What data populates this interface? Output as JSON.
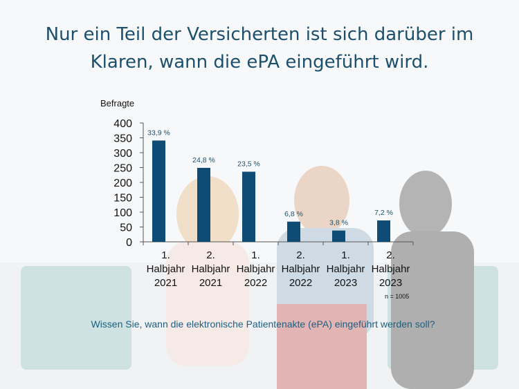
{
  "title": "Nur ein Teil  der Versicherten ist sich darüber im Klaren, wann die ePA eingeführt wird.",
  "colors": {
    "bar": "#0f4c75",
    "title": "#1c4f6b",
    "question": "#1c5f80"
  },
  "note": "n = 1005",
  "question": "Wissen Sie, wann die elektronische Patientenakte (ePA) eingeführt werden soll?",
  "chart_data": {
    "type": "bar",
    "ylabel": "Befragte",
    "xlabel": "",
    "ylim": [
      0,
      400
    ],
    "yticks": [
      0,
      50,
      100,
      150,
      200,
      250,
      300,
      350,
      400
    ],
    "grid": false,
    "categories": [
      [
        "1.",
        "Halbjahr",
        "2021"
      ],
      [
        "2.",
        "Halbjahr",
        "2021"
      ],
      [
        "1.",
        "Halbjahr",
        "2022"
      ],
      [
        "2.",
        "Halbjahr",
        "2022"
      ],
      [
        "1.",
        "Halbjahr",
        "2023"
      ],
      [
        "2.",
        "Halbjahr",
        "2023"
      ]
    ],
    "values": [
      341,
      249,
      236,
      68,
      38,
      72
    ],
    "data_labels": [
      "33,9 %",
      "24,8 %",
      "23,5 %",
      "6,8 %",
      "3,8 %",
      "7,2 %"
    ]
  }
}
